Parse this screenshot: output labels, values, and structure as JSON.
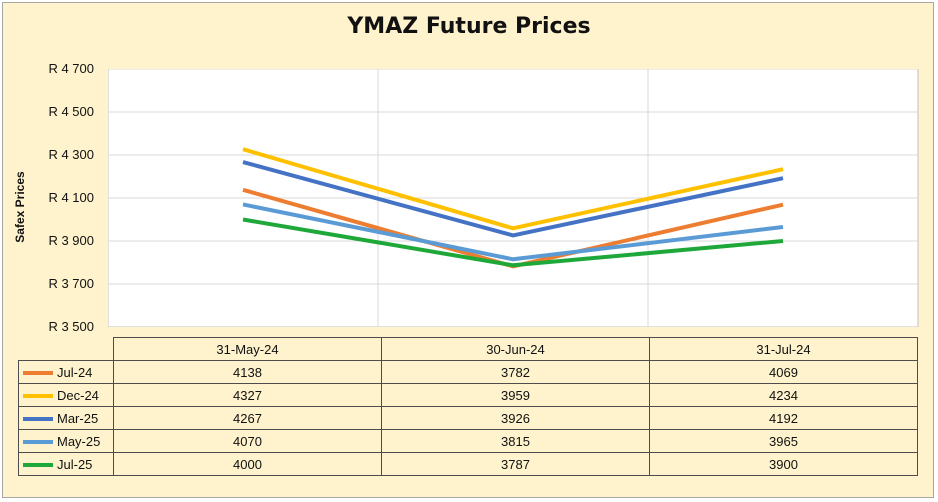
{
  "chart_data": {
    "type": "line",
    "title": "YMAZ Future Prices",
    "ylabel": "Safex Prices",
    "xlabel": "",
    "categories": [
      "31-May-24",
      "30-Jun-24",
      "31-Jul-24"
    ],
    "ylim": [
      3500,
      4700
    ],
    "yticks": [
      3500,
      3700,
      3900,
      4100,
      4300,
      4500,
      4700
    ],
    "ytick_labels": [
      "R 3 500",
      "R 3 700",
      "R 3 900",
      "R 4 100",
      "R 4 300",
      "R 4 500",
      "R 4 700"
    ],
    "grid": true,
    "legend": "data-table",
    "series": [
      {
        "name": "Jul-24",
        "color": "#ed7d31",
        "values": [
          4138,
          3782,
          4069
        ]
      },
      {
        "name": "Dec-24",
        "color": "#ffc000",
        "values": [
          4327,
          3959,
          4234
        ]
      },
      {
        "name": "Mar-25",
        "color": "#4472c4",
        "values": [
          4267,
          3926,
          4192
        ]
      },
      {
        "name": "May-25",
        "color": "#5b9bd5",
        "values": [
          4070,
          3815,
          3965
        ]
      },
      {
        "name": "Jul-25",
        "color": "#1fa83a",
        "values": [
          4000,
          3787,
          3900
        ]
      }
    ]
  }
}
